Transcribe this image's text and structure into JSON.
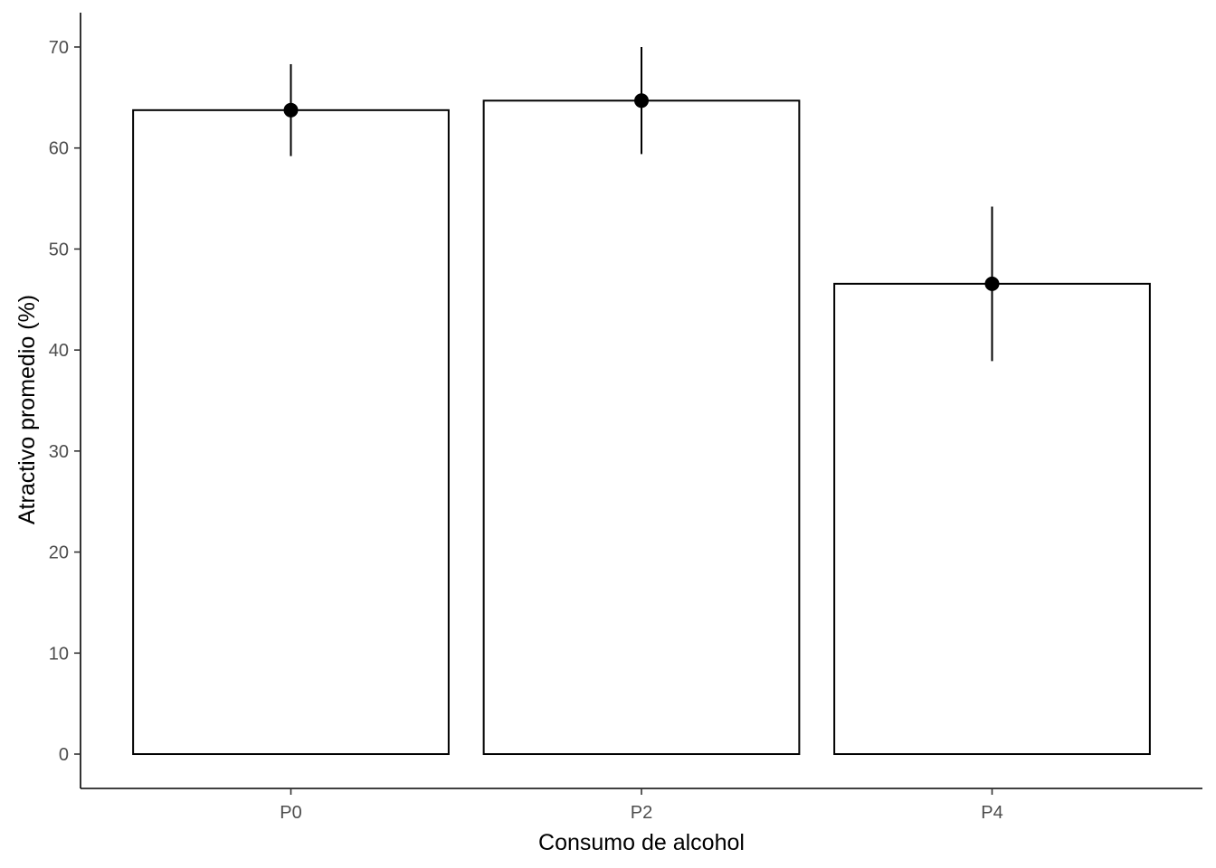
{
  "chart_data": {
    "type": "bar",
    "title": "",
    "xlabel": "Consumo de alcohol",
    "ylabel": "Atractivo promedio (%)",
    "categories": [
      "P0",
      "P2",
      "P4"
    ],
    "values": [
      63.75,
      64.69,
      46.56
    ],
    "error_bars": [
      {
        "low": 59.2,
        "high": 68.3
      },
      {
        "low": 59.4,
        "high": 70.0
      },
      {
        "low": 38.9,
        "high": 54.2
      }
    ],
    "ylim": [
      -3.4,
      73.4
    ],
    "yticks": [
      0,
      10,
      20,
      30,
      40,
      50,
      60,
      70
    ],
    "grid": false,
    "legend": "none",
    "colors": {
      "bar_fill": "#ffffff",
      "bar_stroke": "#000000",
      "point": "#000000"
    }
  }
}
